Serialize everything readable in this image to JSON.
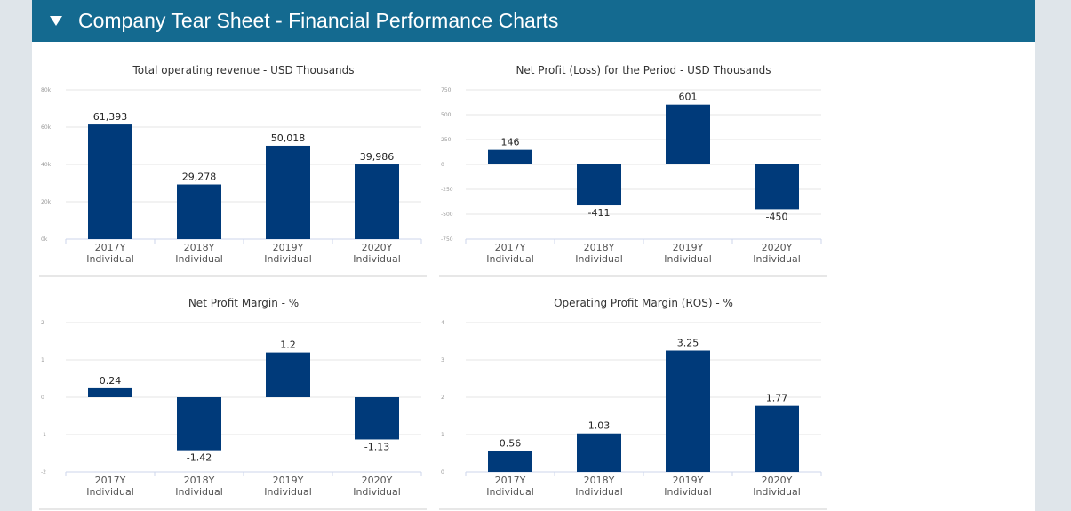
{
  "header": {
    "title": "Company Tear Sheet - Financial Performance Charts"
  },
  "chart_data": [
    {
      "type": "bar",
      "title": "Total operating revenue - USD Thousands",
      "categories": [
        "2017Y Individual",
        "2018Y Individual",
        "2019Y Individual",
        "2020Y Individual"
      ],
      "values": [
        61393,
        29278,
        50018,
        39986
      ],
      "value_labels": [
        "61,393",
        "29,278",
        "50,018",
        "39,986"
      ],
      "ylim": [
        0,
        80000
      ],
      "yticks": [
        "0k",
        "20k",
        "40k",
        "60k",
        "80k"
      ],
      "grid": true,
      "bar_color": "#003a7a"
    },
    {
      "type": "bar",
      "title": "Net Profit (Loss) for the Period - USD Thousands",
      "categories": [
        "2017Y Individual",
        "2018Y Individual",
        "2019Y Individual",
        "2020Y Individual"
      ],
      "values": [
        146,
        -411,
        601,
        -450
      ],
      "value_labels": [
        "146",
        "-411",
        "601",
        "-450"
      ],
      "ylim": [
        -750,
        750
      ],
      "yticks": [
        "-750",
        "-500",
        "-250",
        "0",
        "250",
        "500",
        "750"
      ],
      "grid": true,
      "bar_color": "#003a7a"
    },
    {
      "type": "bar",
      "title": "Net Profit Margin - %",
      "categories": [
        "2017Y Individual",
        "2018Y Individual",
        "2019Y Individual",
        "2020Y Individual"
      ],
      "values": [
        0.24,
        -1.42,
        1.2,
        -1.13
      ],
      "value_labels": [
        "0.24",
        "-1.42",
        "1.2",
        "-1.13"
      ],
      "ylim": [
        -2,
        2
      ],
      "yticks": [
        "-2",
        "-1",
        "0",
        "1",
        "2"
      ],
      "grid": true,
      "bar_color": "#003a7a"
    },
    {
      "type": "bar",
      "title": "Operating Profit Margin (ROS) - %",
      "categories": [
        "2017Y Individual",
        "2018Y Individual",
        "2019Y Individual",
        "2020Y Individual"
      ],
      "values": [
        0.56,
        1.03,
        3.25,
        1.77
      ],
      "value_labels": [
        "0.56",
        "1.03",
        "3.25",
        "1.77"
      ],
      "ylim": [
        0,
        4
      ],
      "yticks": [
        "0",
        "1",
        "2",
        "3",
        "4"
      ],
      "grid": true,
      "bar_color": "#003a7a"
    }
  ]
}
